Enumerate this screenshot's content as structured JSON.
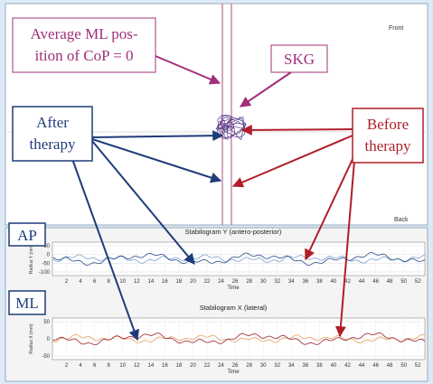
{
  "top_panel": {
    "front": "Front",
    "back": "Back"
  },
  "annotations": {
    "average_ml": [
      "Average ML pos-",
      "ition of  CoP = 0"
    ],
    "skg": "SKG",
    "after": [
      "After",
      "therapy"
    ],
    "before": [
      "Before",
      "therapy"
    ],
    "ap": "AP",
    "ml": "ML"
  },
  "stabilograms": [
    {
      "title": "Stabilogram Y (antero-posterior)",
      "y_label": "Radius Y (mm)",
      "y_ticks": [
        "50",
        "0",
        "-50",
        "-100"
      ],
      "x_ticks": [
        "2",
        "4",
        "6",
        "8",
        "10",
        "12",
        "14",
        "16",
        "18",
        "20",
        "22",
        "24",
        "26",
        "28",
        "30",
        "32",
        "34",
        "36",
        "38",
        "40",
        "42",
        "44",
        "46",
        "48",
        "50",
        "52"
      ],
      "x_label": "Time"
    },
    {
      "title": "Stabilogram X (lateral)",
      "y_label": "Radius X (mm)",
      "y_ticks": [
        "50",
        "0",
        "-50"
      ],
      "x_ticks": [
        "2",
        "4",
        "6",
        "8",
        "10",
        "12",
        "14",
        "16",
        "18",
        "20",
        "22",
        "24",
        "26",
        "28",
        "30",
        "32",
        "34",
        "36",
        "38",
        "40",
        "42",
        "44",
        "46",
        "48",
        "50",
        "52"
      ],
      "x_label": "Time"
    }
  ]
}
